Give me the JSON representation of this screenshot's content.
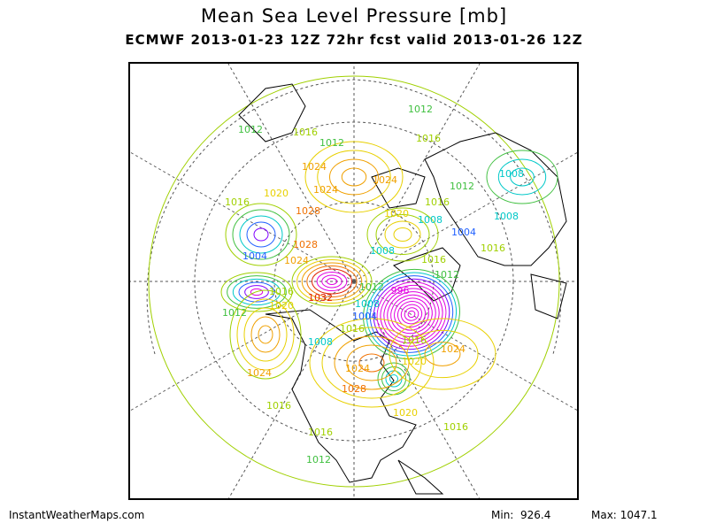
{
  "title": "Mean Sea Level Pressure [mb]",
  "subtitle": "ECMWF 2013-01-23 12Z 72hr fcst valid 2013-01-26 12Z",
  "footer": {
    "site": "InstantWeatherMaps.com",
    "min_label": "Min:",
    "min_value": "926.4",
    "max_label": "Max:",
    "max_value": "1047.1"
  },
  "contour_colors": {
    "below_1000": "#e000e0",
    "1000": "#8000ff",
    "1004": "#2060ff",
    "1008": "#00c8c8",
    "1012": "#40c040",
    "1016": "#a0d000",
    "1020": "#e8d000",
    "1024": "#f0a000",
    "1028": "#f07000",
    "1032": "#e02000",
    "above_1036": "#e000e0"
  },
  "contour_labels": [
    "1012",
    "1012",
    "1016",
    "1012",
    "1016",
    "1024",
    "1024",
    "1012",
    "1008",
    "1016",
    "1020",
    "1024",
    "1028",
    "1020",
    "1016",
    "1008",
    "1004",
    "1008",
    "1016",
    "1004",
    "1024",
    "1028",
    "1008",
    "1016",
    "1012",
    "1016",
    "1012",
    "1020",
    "1032",
    "1012",
    "996",
    "1008",
    "1004",
    "1016",
    "1008",
    "1016",
    "1020",
    "1024",
    "1024",
    "1024",
    "1028",
    "1016",
    "1020",
    "1016",
    "1016",
    "1012"
  ]
}
